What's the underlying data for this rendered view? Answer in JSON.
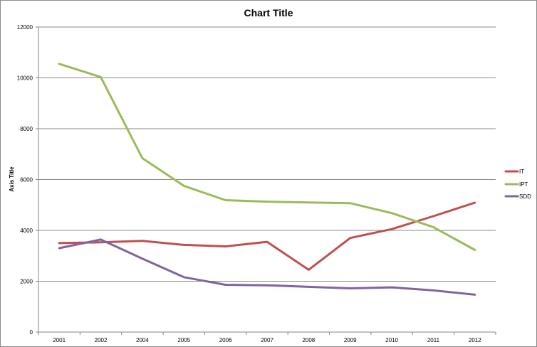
{
  "chart_data": {
    "type": "line",
    "title": "Chart Title",
    "xlabel": "",
    "ylabel": "Axis Title",
    "categories": [
      "2001",
      "2002",
      "2004",
      "2005",
      "2006",
      "2007",
      "2008",
      "2009",
      "2010",
      "2011",
      "2012"
    ],
    "ylim": [
      0,
      12000
    ],
    "yticks": [
      0,
      2000,
      4000,
      6000,
      8000,
      10000,
      12000
    ],
    "grid": true,
    "legend_position": "right",
    "series": [
      {
        "name": "IT",
        "color": "#C0504D",
        "values": [
          3500,
          3530,
          3590,
          3430,
          3370,
          3550,
          2450,
          3700,
          4050,
          4560,
          5090
        ]
      },
      {
        "name": "IPT",
        "color": "#9BBB59",
        "values": [
          10550,
          10030,
          6840,
          5750,
          5190,
          5130,
          5100,
          5070,
          4680,
          4130,
          3230
        ]
      },
      {
        "name": "SDD",
        "color": "#8064A2",
        "values": [
          3300,
          3640,
          2890,
          2160,
          1860,
          1840,
          1780,
          1720,
          1760,
          1640,
          1470
        ]
      }
    ]
  }
}
